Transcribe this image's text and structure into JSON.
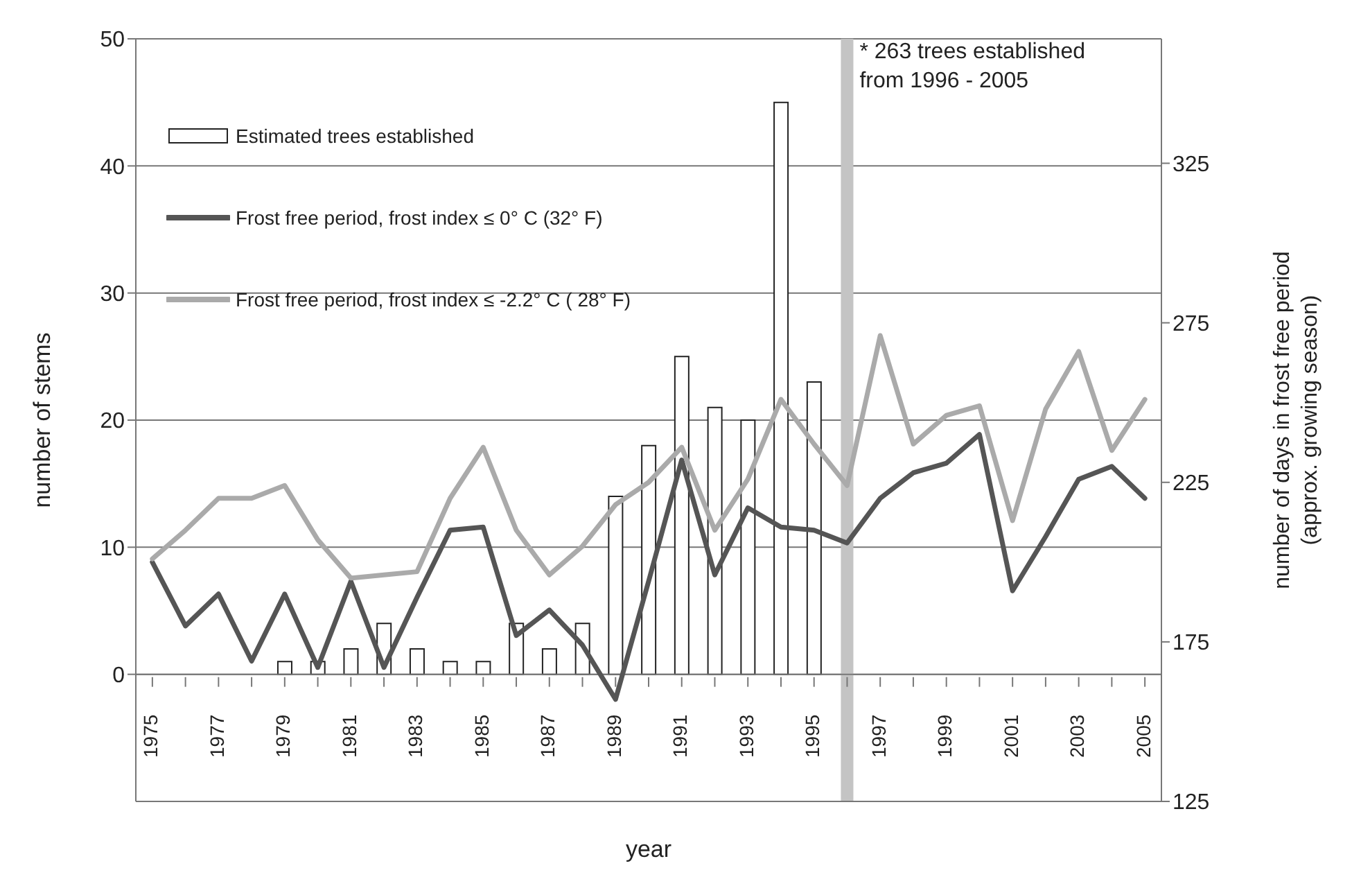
{
  "chart_data": {
    "type": "bar",
    "xlabel": "year",
    "ylabel": "number of stems",
    "y2label": "number of days in frost free period (approx. growing season)",
    "x": [
      1975,
      1976,
      1977,
      1978,
      1979,
      1980,
      1981,
      1982,
      1983,
      1984,
      1985,
      1986,
      1987,
      1988,
      1989,
      1990,
      1991,
      1992,
      1993,
      1994,
      1995,
      1996,
      1997,
      1998,
      1999,
      2000,
      2001,
      2002,
      2003,
      2004,
      2005
    ],
    "xlim": [
      1974.5,
      2005.5
    ],
    "xticks": [
      1975,
      {
        "value": 1976,
        "label": null
      },
      1977,
      {
        "value": 1978,
        "label": null
      },
      1979,
      {
        "value": 1980,
        "label": null
      },
      1981,
      {
        "value": 1982,
        "label": null
      },
      1983,
      {
        "value": 1984,
        "label": null
      },
      1985,
      {
        "value": 1986,
        "label": null
      },
      1987,
      {
        "value": 1988,
        "label": null
      },
      1989,
      {
        "value": 1990,
        "label": null
      },
      1991,
      {
        "value": 1992,
        "label": null
      },
      1993,
      {
        "value": 1994,
        "label": null
      },
      1995,
      {
        "value": 1996,
        "label": null
      },
      1997,
      {
        "value": 1998,
        "label": null
      },
      1999,
      {
        "value": 2000,
        "label": null
      },
      2001,
      {
        "value": 2002,
        "label": null
      },
      2003,
      {
        "value": 2004,
        "label": null
      },
      2005
    ],
    "ylim": [
      -10,
      50
    ],
    "yticks": [
      0,
      10,
      20,
      30,
      40,
      50
    ],
    "y2lim": [
      125,
      364
    ],
    "y2ticks": [
      125,
      175,
      225,
      275,
      325
    ],
    "grid": "y",
    "legend": "top left",
    "series": [
      {
        "name": "Estimated trees established",
        "color": "#ffffff",
        "values": [
          0,
          0,
          0,
          0,
          1,
          1,
          2,
          4,
          2,
          1,
          1,
          4,
          2,
          4,
          14,
          18,
          25,
          21,
          20,
          45,
          23,
          null,
          null,
          null,
          null,
          null,
          null,
          null,
          null,
          null,
          null
        ]
      },
      {
        "name": "Frost free period, frost index ≤ 0° C (32° F)",
        "type": "line",
        "axis": "y2",
        "color": "#555555",
        "values": [
          200,
          180,
          190,
          169,
          190,
          167,
          194,
          167,
          189,
          210,
          211,
          177,
          185,
          174,
          157,
          194,
          232,
          196,
          217,
          211,
          210,
          206,
          220,
          228,
          231,
          240,
          191,
          208,
          226,
          230,
          220
        ]
      },
      {
        "name": "Frost free period, frost index ≤ -2.2° C ( 28° F)",
        "type": "line",
        "axis": "y2",
        "color": "#aaaaaa",
        "values": [
          201,
          210,
          220,
          220,
          224,
          207,
          195,
          196,
          197,
          220,
          236,
          210,
          196,
          205,
          218,
          225,
          236,
          210,
          226,
          251,
          237,
          224,
          271,
          237,
          246,
          249,
          213,
          248,
          266,
          235,
          251
        ]
      }
    ],
    "ref_lines": [
      {
        "axis": "x",
        "value": 1996,
        "label": "* 263 trees established from 1996 - 2005",
        "color": "#c4c4c4"
      }
    ]
  }
}
